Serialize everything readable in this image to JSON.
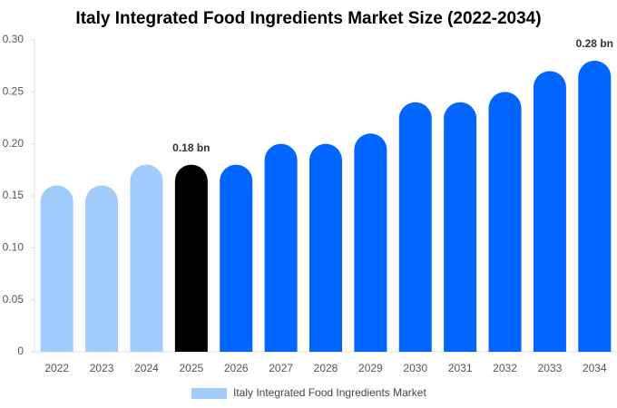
{
  "chart_data": {
    "type": "bar",
    "title": "Italy Integrated Food Ingredients Market Size (2022-2034)",
    "categories": [
      "2022",
      "2023",
      "2024",
      "2025",
      "2026",
      "2027",
      "2028",
      "2029",
      "2030",
      "2031",
      "2032",
      "2033",
      "2034"
    ],
    "series": [
      {
        "name": "Italy Integrated Food Ingredients Market",
        "color": "#a0cbfb",
        "colors": [
          "#a0cbfb",
          "#a0cbfb",
          "#a0cbfb",
          "#000000",
          "#0066ff",
          "#0066ff",
          "#0066ff",
          "#0066ff",
          "#0066ff",
          "#0066ff",
          "#0066ff",
          "#0066ff",
          "#0066ff"
        ],
        "values": [
          0.16,
          0.16,
          0.18,
          0.18,
          0.18,
          0.2,
          0.2,
          0.21,
          0.24,
          0.24,
          0.25,
          0.27,
          0.28
        ],
        "value_labels": [
          null,
          null,
          null,
          "0.18 bn",
          null,
          null,
          null,
          null,
          null,
          null,
          null,
          null,
          "0.28 bn"
        ]
      }
    ],
    "ylim": [
      0,
      0.3
    ],
    "yticks": [
      0,
      0.05,
      {
        "value": 0.1,
        "label": "0.10"
      },
      0.15,
      {
        "value": 0.2,
        "label": "0.20"
      },
      0.25,
      {
        "value": 0.3,
        "label": "0.30"
      }
    ],
    "grid": false
  }
}
